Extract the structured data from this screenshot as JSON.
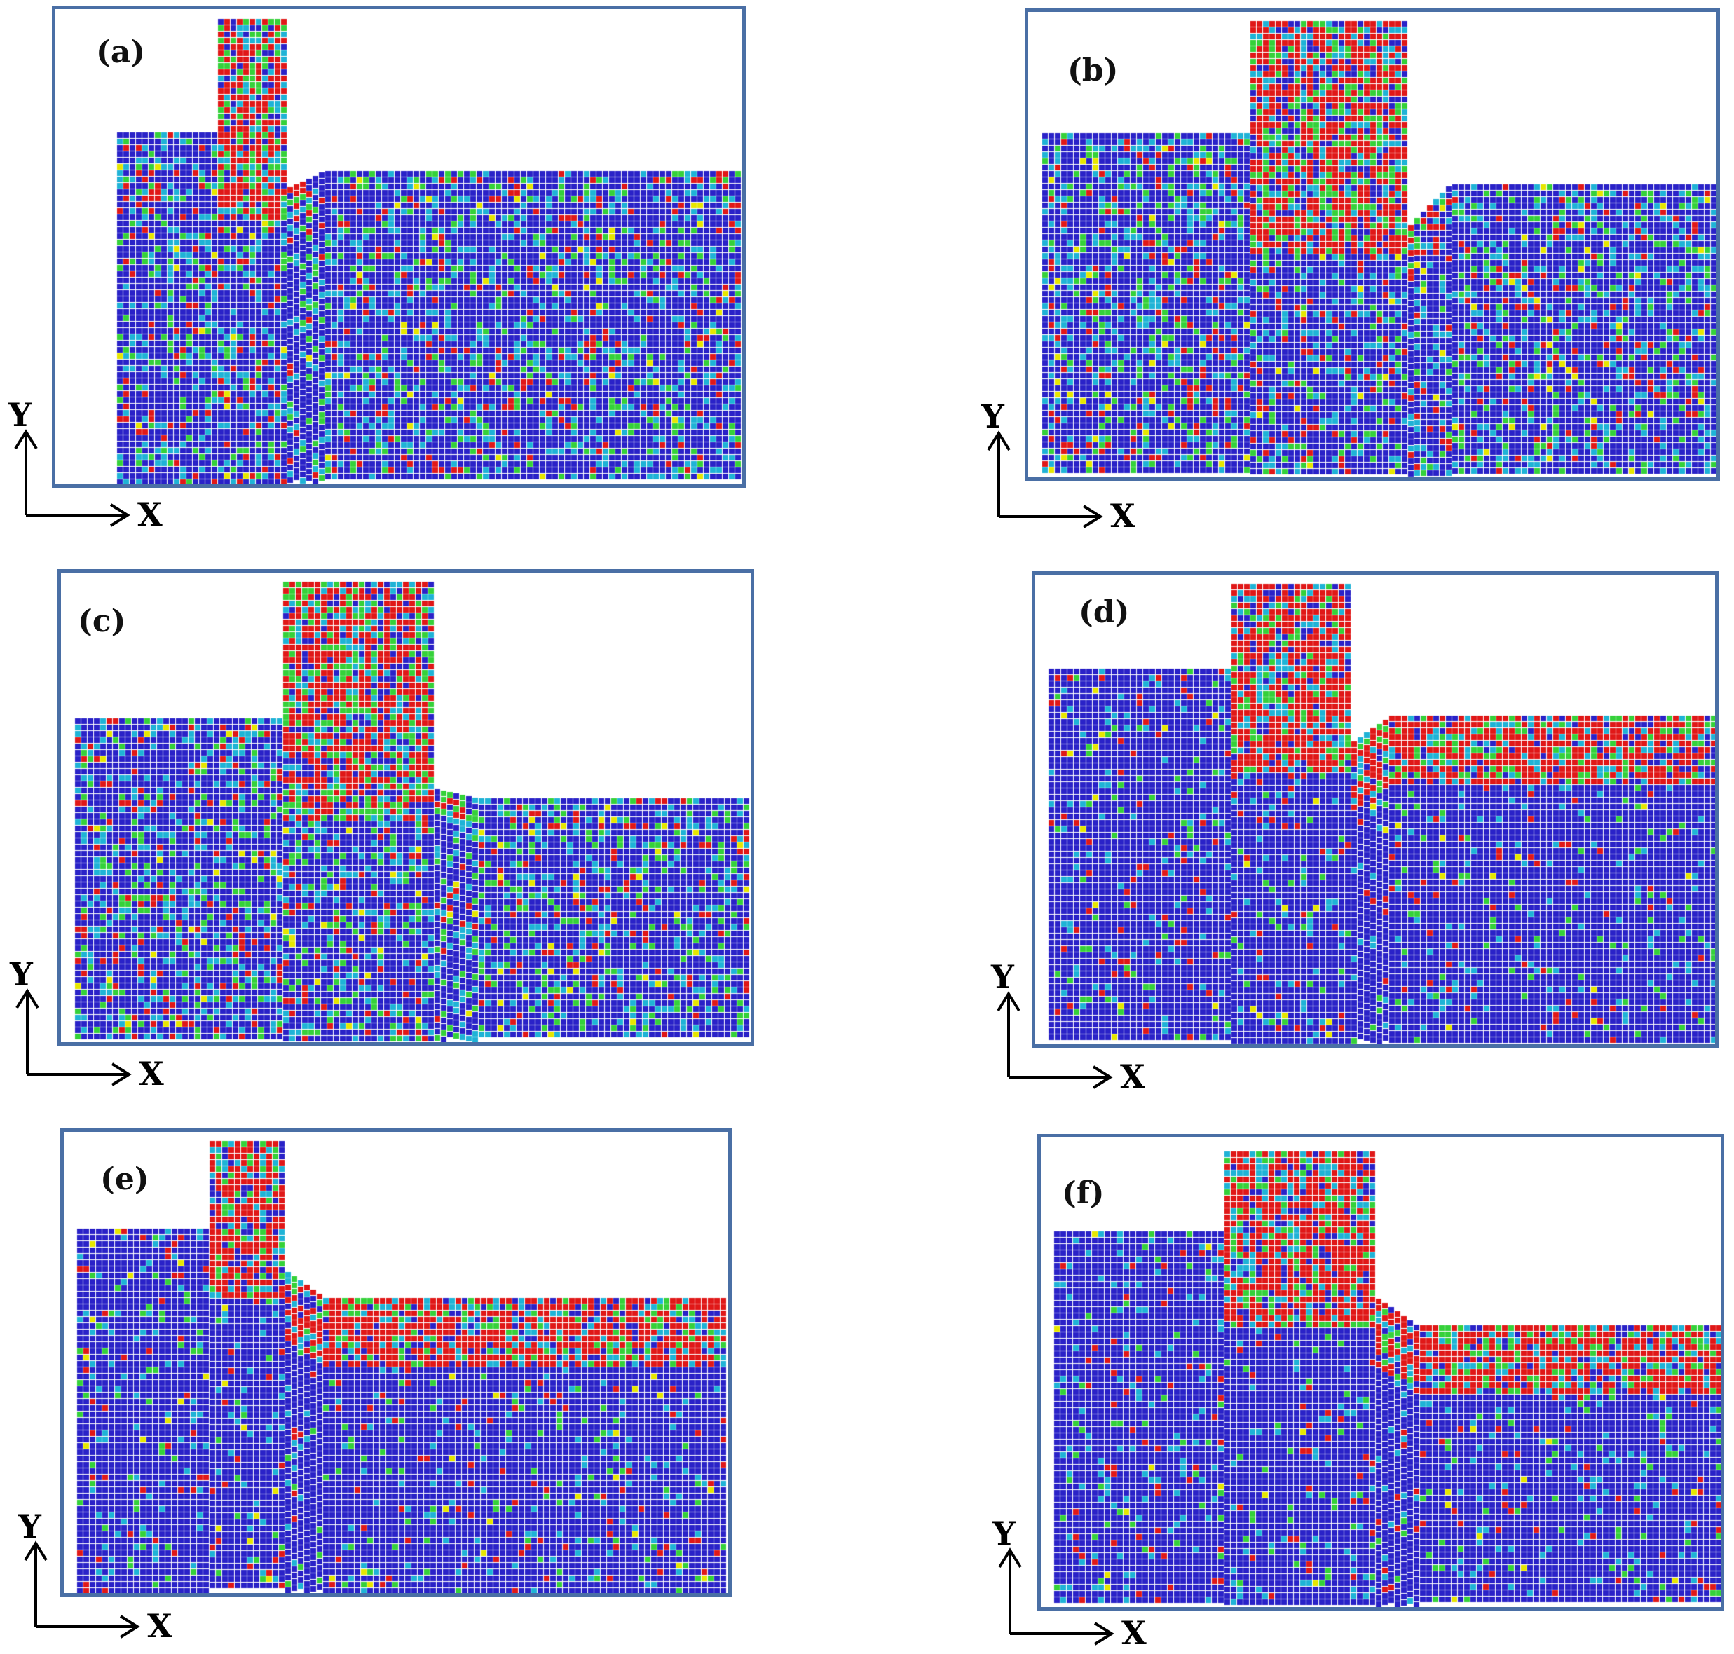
{
  "panels": [
    {
      "label": "(a)",
      "x_axis": "X",
      "y_axis": "Y",
      "colormap": [
        "#2a22c8",
        "#1fb3d6",
        "#35d13a",
        "#e6e600",
        "#e01818"
      ]
    },
    {
      "label": "(b)",
      "x_axis": "X",
      "y_axis": "Y",
      "colormap": [
        "#2a22c8",
        "#1fb3d6",
        "#35d13a",
        "#e6e600",
        "#e01818"
      ]
    },
    {
      "label": "(c)",
      "x_axis": "X",
      "y_axis": "Y",
      "colormap": [
        "#2a22c8",
        "#1fb3d6",
        "#35d13a",
        "#e6e600",
        "#e01818"
      ]
    },
    {
      "label": "(d)",
      "x_axis": "X",
      "y_axis": "Y",
      "colormap": [
        "#2a22c8",
        "#1fb3d6",
        "#35d13a",
        "#e6e600",
        "#e01818"
      ]
    },
    {
      "label": "(e)",
      "x_axis": "X",
      "y_axis": "Y",
      "colormap": [
        "#2a22c8",
        "#1fb3d6",
        "#35d13a",
        "#e6e600",
        "#e01818"
      ]
    },
    {
      "label": "(f)",
      "x_axis": "X",
      "y_axis": "Y",
      "colormap": [
        "#2a22c8",
        "#1fb3d6",
        "#35d13a",
        "#e6e600",
        "#e01818"
      ]
    }
  ]
}
